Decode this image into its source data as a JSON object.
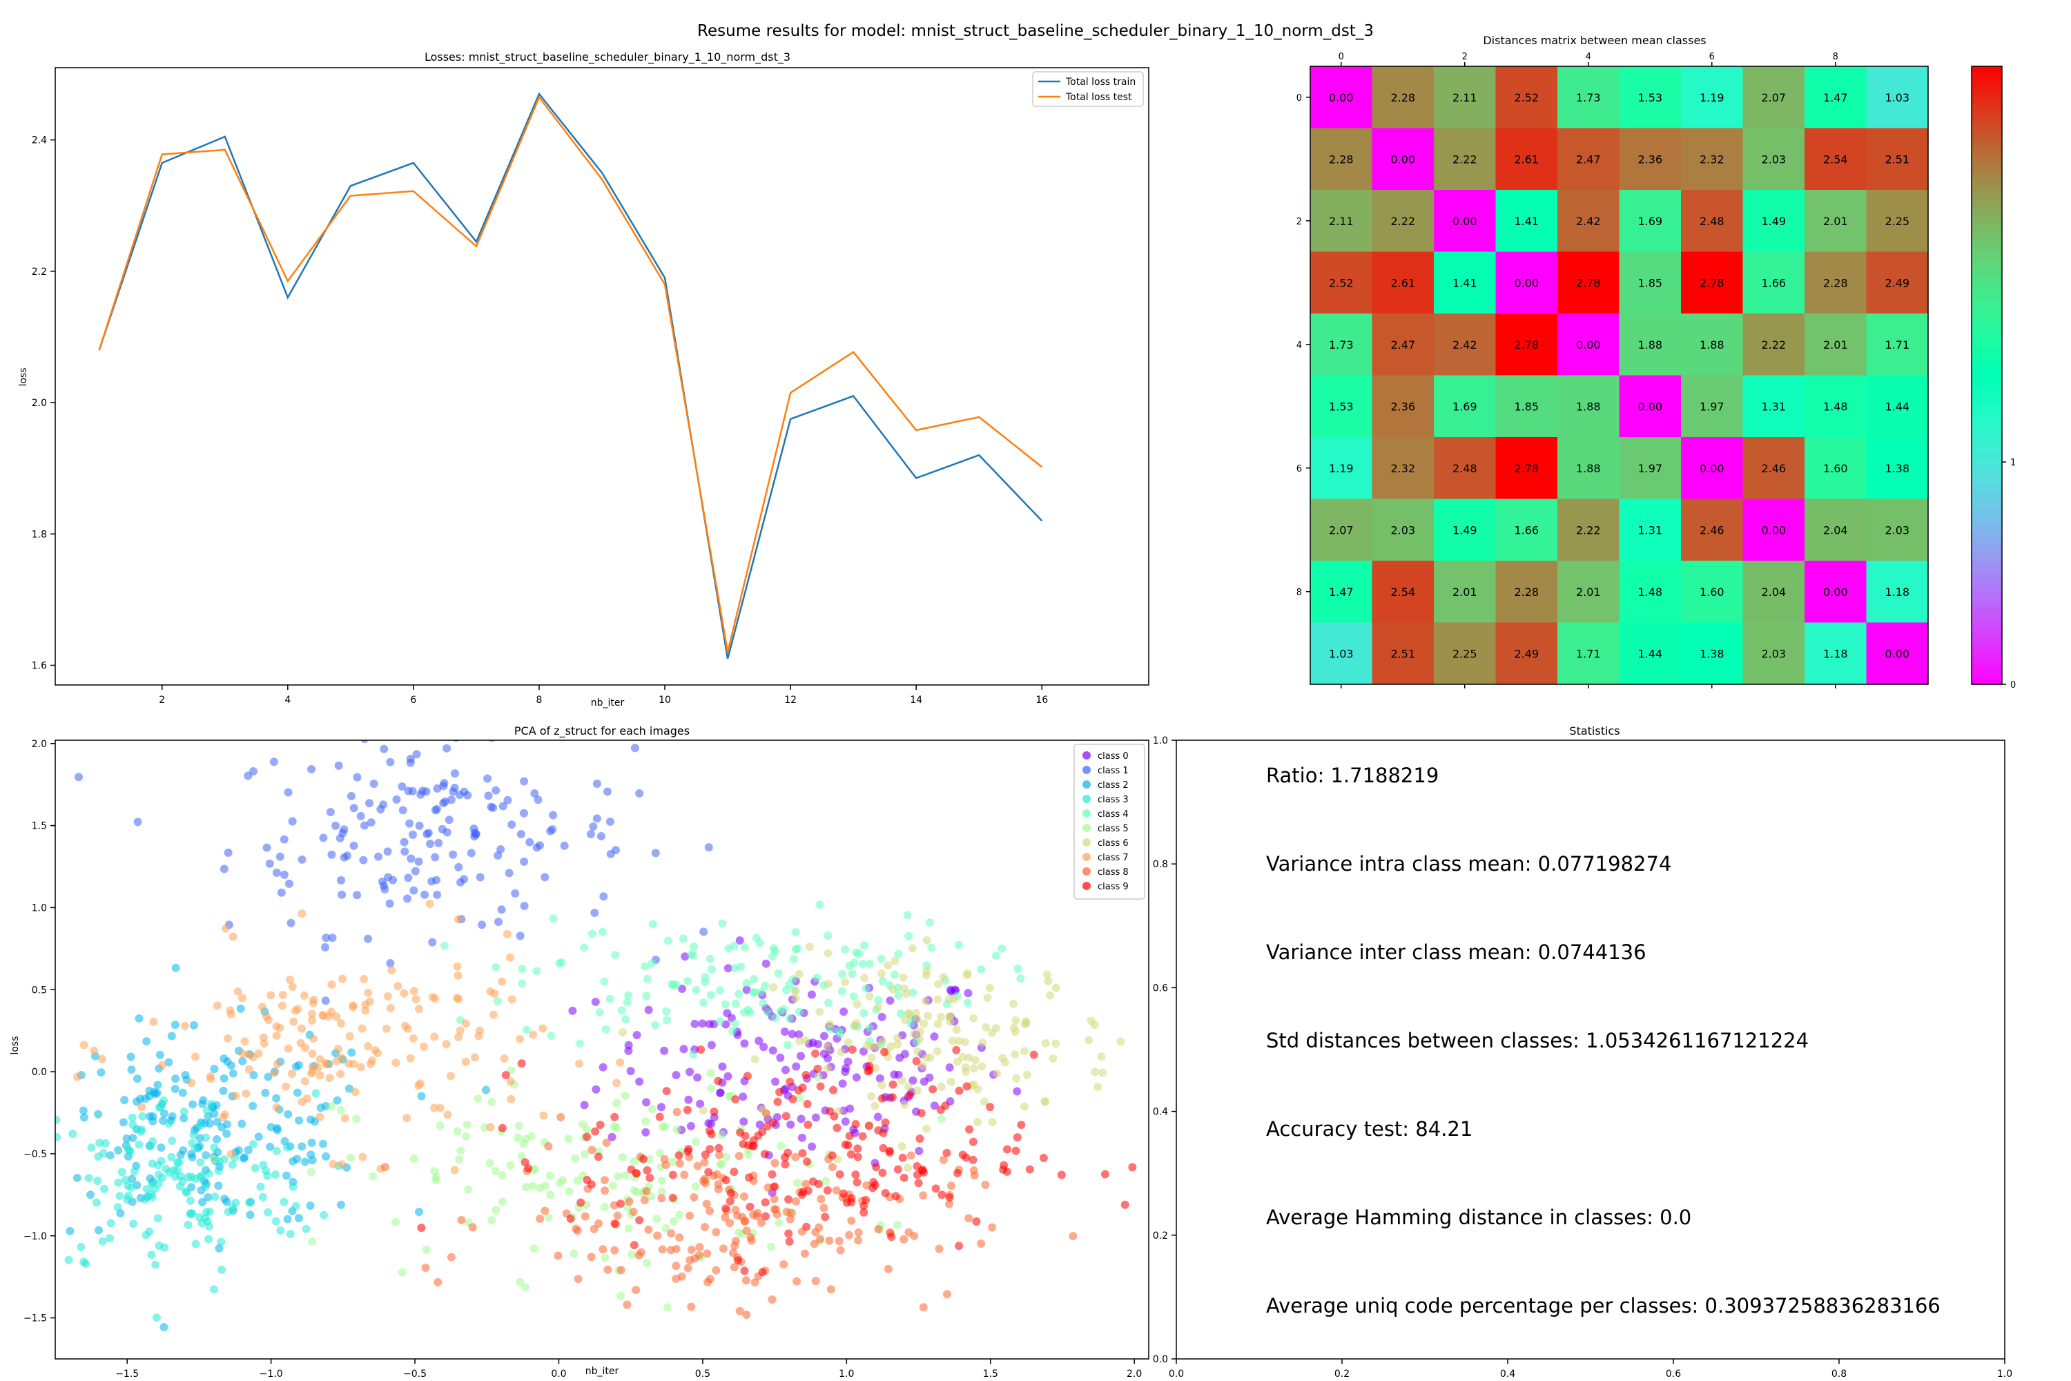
{
  "figure": {
    "suptitle": "Resume results for model: mnist_struct_baseline_scheduler_binary_1_10_norm_dst_3"
  },
  "chart_data": [
    {
      "type": "line",
      "title": "Losses: mnist_struct_baseline_scheduler_binary_1_10_norm_dst_3",
      "xlabel": "nb_iter",
      "ylabel": "loss",
      "xlim": [
        0.3,
        17.7
      ],
      "ylim": [
        1.57,
        2.51
      ],
      "xticks": [
        2,
        4,
        6,
        8,
        10,
        12,
        14,
        16
      ],
      "yticks": [
        1.6,
        1.8,
        2.0,
        2.2,
        2.4
      ],
      "x": [
        1,
        2,
        3,
        4,
        5,
        6,
        7,
        8,
        9,
        10,
        11,
        12,
        13,
        14,
        15,
        16
      ],
      "series": [
        {
          "name": "Total loss train",
          "color": "#1f77b4",
          "values": [
            2.08,
            2.365,
            2.405,
            2.16,
            2.33,
            2.365,
            2.245,
            2.47,
            2.35,
            2.19,
            1.61,
            1.975,
            2.01,
            1.885,
            1.92,
            1.82
          ]
        },
        {
          "name": "Total loss test",
          "color": "#ff7f0e",
          "values": [
            2.08,
            2.378,
            2.385,
            2.185,
            2.315,
            2.322,
            2.238,
            2.465,
            2.34,
            2.18,
            1.62,
            2.015,
            2.077,
            1.958,
            1.978,
            1.902
          ]
        }
      ],
      "legend": "upper right",
      "grid": false
    },
    {
      "type": "heatmap",
      "title": "Distances matrix between mean classes",
      "xticks": [
        0,
        2,
        4,
        6,
        8
      ],
      "yticks": [
        0,
        2,
        4,
        6,
        8
      ],
      "colormap": "rainbow",
      "vmin": 0,
      "vmax": 2.78,
      "colorbar_ticks": [
        0,
        1
      ],
      "values": [
        [
          0.0,
          2.28,
          2.11,
          2.52,
          1.73,
          1.53,
          1.19,
          2.07,
          1.47,
          1.03
        ],
        [
          2.28,
          0.0,
          2.22,
          2.61,
          2.47,
          2.36,
          2.32,
          2.03,
          2.54,
          2.51
        ],
        [
          2.11,
          2.22,
          0.0,
          1.41,
          2.42,
          1.69,
          2.48,
          1.49,
          2.01,
          2.25
        ],
        [
          2.52,
          2.61,
          1.41,
          0.0,
          2.78,
          1.85,
          2.78,
          1.66,
          2.28,
          2.49
        ],
        [
          1.73,
          2.47,
          2.42,
          2.78,
          0.0,
          1.88,
          1.88,
          2.22,
          2.01,
          1.71
        ],
        [
          1.53,
          2.36,
          1.69,
          1.85,
          1.88,
          0.0,
          1.97,
          1.31,
          1.48,
          1.44
        ],
        [
          1.19,
          2.32,
          2.48,
          2.78,
          1.88,
          1.97,
          0.0,
          2.46,
          1.6,
          1.38
        ],
        [
          2.07,
          2.03,
          1.49,
          1.66,
          2.22,
          1.31,
          2.46,
          0.0,
          2.04,
          2.03
        ],
        [
          1.47,
          2.54,
          2.01,
          2.28,
          2.01,
          1.48,
          1.6,
          2.04,
          0.0,
          1.18
        ],
        [
          1.03,
          2.51,
          2.25,
          2.49,
          1.71,
          1.44,
          1.38,
          2.03,
          1.18,
          0.0
        ]
      ]
    },
    {
      "type": "scatter",
      "title": "PCA of z_struct for each images",
      "xlabel": "nb_iter",
      "ylabel": "loss",
      "xlim": [
        -1.75,
        2.05
      ],
      "ylim": [
        -1.75,
        2.02
      ],
      "xticks": [
        -1.5,
        -1.0,
        -0.5,
        0.0,
        0.5,
        1.0,
        1.5,
        2.0
      ],
      "yticks": [
        -1.5,
        -1.0,
        -0.5,
        0.0,
        0.5,
        1.0,
        1.5,
        2.0
      ],
      "legend": "upper right",
      "series": [
        {
          "name": "class 0",
          "color": "#8000ff",
          "center": [
            0.85,
            0.05
          ],
          "spread": [
            0.35,
            0.3
          ],
          "n": 170
        },
        {
          "name": "class 1",
          "color": "#4062fa",
          "center": [
            -0.45,
            1.45
          ],
          "spread": [
            0.35,
            0.3
          ],
          "n": 180
        },
        {
          "name": "class 2",
          "color": "#00b5eb",
          "center": [
            -1.2,
            -0.35
          ],
          "spread": [
            0.3,
            0.3
          ],
          "n": 190
        },
        {
          "name": "class 3",
          "color": "#20e9d7",
          "center": [
            -1.35,
            -0.7
          ],
          "spread": [
            0.25,
            0.28
          ],
          "n": 150
        },
        {
          "name": "class 4",
          "color": "#60ffb9",
          "center": [
            0.65,
            0.55
          ],
          "spread": [
            0.4,
            0.2
          ],
          "n": 150
        },
        {
          "name": "class 5",
          "color": "#a0f990",
          "center": [
            0.15,
            -0.65
          ],
          "spread": [
            0.45,
            0.3
          ],
          "n": 150
        },
        {
          "name": "class 6",
          "color": "#d5d87a",
          "center": [
            1.35,
            0.2
          ],
          "spread": [
            0.3,
            0.25
          ],
          "n": 150
        },
        {
          "name": "class 7",
          "color": "#ffa256",
          "center": [
            -0.75,
            0.15
          ],
          "spread": [
            0.35,
            0.3
          ],
          "n": 170
        },
        {
          "name": "class 8",
          "color": "#ff6430",
          "center": [
            0.6,
            -0.9
          ],
          "spread": [
            0.4,
            0.25
          ],
          "n": 190
        },
        {
          "name": "class 9",
          "color": "#ff0000",
          "center": [
            0.85,
            -0.5
          ],
          "spread": [
            0.4,
            0.3
          ],
          "n": 190
        }
      ]
    },
    {
      "type": "table",
      "title": "Statistics",
      "xlim": [
        0.0,
        1.0
      ],
      "ylim": [
        0.0,
        1.0
      ],
      "xticks": [
        0.0,
        0.2,
        0.4,
        0.6,
        0.8,
        1.0
      ],
      "yticks": [
        0.0,
        0.2,
        0.4,
        0.6,
        0.8,
        1.0
      ],
      "lines": [
        "Ratio: 1.7188219",
        "Variance intra class mean: 0.077198274",
        "Variance inter class mean: 0.0744136",
        "Std distances between classes: 1.0534261167121224",
        "Accuracy test: 84.21",
        "Average Hamming distance in classes: 0.0",
        "Average uniq code percentage per classes: 0.30937258836283166"
      ]
    }
  ]
}
